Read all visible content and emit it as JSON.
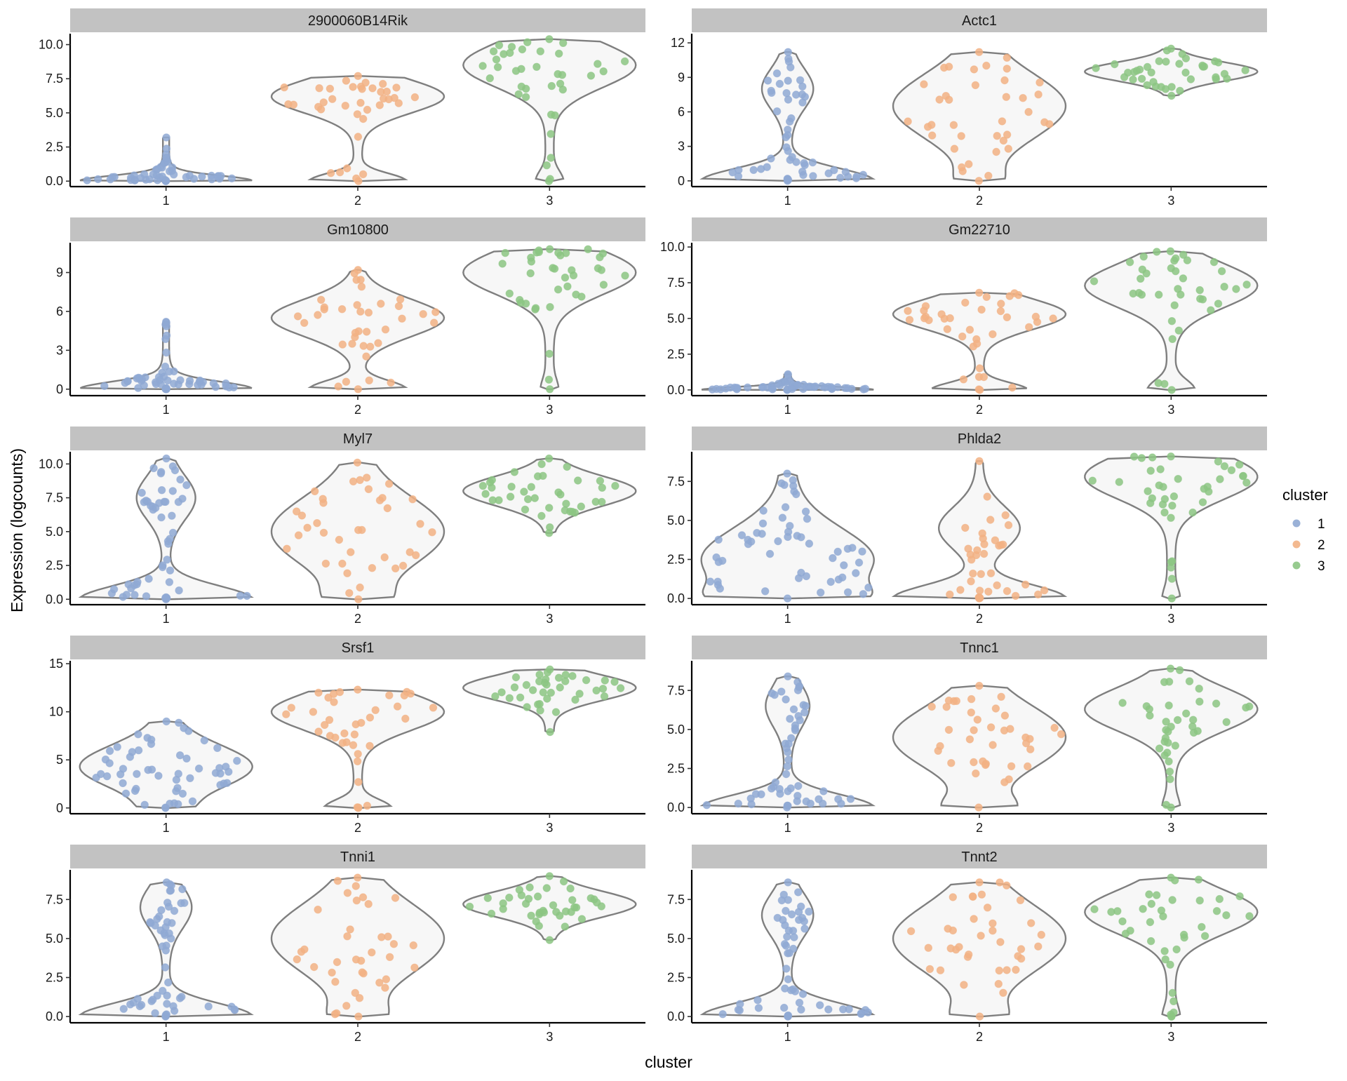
{
  "colors": {
    "1": "#8fa9d3",
    "2": "#f2b184",
    "3": "#8cc583"
  },
  "axis_titles": {
    "x": "cluster",
    "y": "Expression (logcounts)"
  },
  "legend": {
    "title": "cluster",
    "items": [
      "1",
      "2",
      "3"
    ]
  },
  "chart_data": [
    {
      "type": "violin",
      "title": "2900060B14Rik",
      "categories": [
        "1",
        "2",
        "3"
      ],
      "ylim": [
        -0.4,
        10.8
      ],
      "yticks": [
        0,
        2.5,
        5,
        7.5,
        10
      ],
      "ytick_labels": [
        "0.0",
        "2.5",
        "5.0",
        "7.5",
        "10.0"
      ],
      "groups": [
        {
          "name": "1",
          "min": 0,
          "max": 3.2,
          "n_points": 55,
          "distribution": "zero-heavy",
          "upper_mode": 0.5,
          "upper_frac": 0.1
        },
        {
          "name": "2",
          "min": 0,
          "max": 7.7,
          "n_points": 38,
          "distribution": "bimodal",
          "upper_mode": 6.2,
          "upper_frac": 0.55
        },
        {
          "name": "3",
          "min": 0,
          "max": 10.4,
          "n_points": 38,
          "distribution": "bimodal",
          "upper_mode": 8.5,
          "upper_frac": 0.9
        }
      ]
    },
    {
      "type": "violin",
      "title": "Actc1",
      "categories": [
        "1",
        "2",
        "3"
      ],
      "ylim": [
        -0.5,
        12.8
      ],
      "yticks": [
        0,
        3,
        6,
        9,
        12
      ],
      "ytick_labels": [
        "0",
        "3",
        "6",
        "9",
        "12"
      ],
      "groups": [
        {
          "name": "1",
          "min": 0,
          "max": 11.2,
          "n_points": 55,
          "distribution": "zero-heavy",
          "upper_mode": 8,
          "upper_frac": 0.3
        },
        {
          "name": "2",
          "min": 0,
          "max": 11.2,
          "n_points": 38,
          "distribution": "broad",
          "upper_mode": 6.5,
          "upper_frac": 0.85
        },
        {
          "name": "3",
          "min": 7.4,
          "max": 11.5,
          "n_points": 38,
          "distribution": "tight",
          "upper_mode": 9.5,
          "upper_frac": 1
        }
      ]
    },
    {
      "type": "violin",
      "title": "Gm10800",
      "categories": [
        "1",
        "2",
        "3"
      ],
      "ylim": [
        -0.5,
        11.3
      ],
      "yticks": [
        0,
        3,
        6,
        9
      ],
      "ytick_labels": [
        "0",
        "3",
        "6",
        "9"
      ],
      "groups": [
        {
          "name": "1",
          "min": 0,
          "max": 5.2,
          "n_points": 55,
          "distribution": "zero-heavy",
          "upper_mode": 0.6,
          "upper_frac": 0.1
        },
        {
          "name": "2",
          "min": 0,
          "max": 9.2,
          "n_points": 38,
          "distribution": "bimodal",
          "upper_mode": 5.5,
          "upper_frac": 0.55
        },
        {
          "name": "3",
          "min": 0,
          "max": 10.8,
          "n_points": 38,
          "distribution": "bimodal",
          "upper_mode": 9,
          "upper_frac": 0.95
        }
      ]
    },
    {
      "type": "violin",
      "title": "Gm22710",
      "categories": [
        "1",
        "2",
        "3"
      ],
      "ylim": [
        -0.4,
        10.3
      ],
      "yticks": [
        0,
        2.5,
        5,
        7.5,
        10
      ],
      "ytick_labels": [
        "0.0",
        "2.5",
        "5.0",
        "7.5",
        "10.0"
      ],
      "groups": [
        {
          "name": "1",
          "min": 0,
          "max": 1.1,
          "n_points": 55,
          "distribution": "zero-heavy",
          "upper_mode": 0.5,
          "upper_frac": 0.05
        },
        {
          "name": "2",
          "min": 0,
          "max": 6.8,
          "n_points": 38,
          "distribution": "bimodal",
          "upper_mode": 5.3,
          "upper_frac": 0.55
        },
        {
          "name": "3",
          "min": 0,
          "max": 9.7,
          "n_points": 38,
          "distribution": "bimodal",
          "upper_mode": 7.3,
          "upper_frac": 0.8
        }
      ]
    },
    {
      "type": "violin",
      "title": "Myl7",
      "categories": [
        "1",
        "2",
        "3"
      ],
      "ylim": [
        -0.4,
        10.9
      ],
      "yticks": [
        0,
        2.5,
        5,
        7.5,
        10
      ],
      "ytick_labels": [
        "0.0",
        "2.5",
        "5.0",
        "7.5",
        "10.0"
      ],
      "groups": [
        {
          "name": "1",
          "min": 0,
          "max": 10.4,
          "n_points": 55,
          "distribution": "zero-heavy",
          "upper_mode": 7.5,
          "upper_frac": 0.35
        },
        {
          "name": "2",
          "min": 0,
          "max": 10.1,
          "n_points": 38,
          "distribution": "broad",
          "upper_mode": 5,
          "upper_frac": 0.8
        },
        {
          "name": "3",
          "min": 4.9,
          "max": 10.4,
          "n_points": 38,
          "distribution": "tight",
          "upper_mode": 8,
          "upper_frac": 1
        }
      ]
    },
    {
      "type": "violin",
      "title": "Phlda2",
      "categories": [
        "1",
        "2",
        "3"
      ],
      "ylim": [
        -0.4,
        9.4
      ],
      "yticks": [
        0,
        2.5,
        5,
        7.5
      ],
      "ytick_labels": [
        "0.0",
        "2.5",
        "5.0",
        "7.5"
      ],
      "groups": [
        {
          "name": "1",
          "min": 0,
          "max": 8.0,
          "n_points": 55,
          "distribution": "broad",
          "upper_mode": 2.5,
          "upper_frac": 0.55
        },
        {
          "name": "2",
          "min": 0,
          "max": 8.8,
          "n_points": 38,
          "distribution": "zero-heavy",
          "upper_mode": 4.5,
          "upper_frac": 0.5
        },
        {
          "name": "3",
          "min": 0,
          "max": 9.1,
          "n_points": 38,
          "distribution": "bimodal",
          "upper_mode": 7.8,
          "upper_frac": 0.95
        }
      ]
    },
    {
      "type": "violin",
      "title": "Srsf1",
      "categories": [
        "1",
        "2",
        "3"
      ],
      "ylim": [
        -0.6,
        15.3
      ],
      "yticks": [
        0,
        5,
        10,
        15
      ],
      "ytick_labels": [
        "0",
        "5",
        "10",
        "15"
      ],
      "groups": [
        {
          "name": "1",
          "min": 0,
          "max": 9.0,
          "n_points": 55,
          "distribution": "broad",
          "upper_mode": 4.3,
          "upper_frac": 0.9
        },
        {
          "name": "2",
          "min": 0,
          "max": 12.3,
          "n_points": 38,
          "distribution": "bimodal",
          "upper_mode": 10,
          "upper_frac": 0.7
        },
        {
          "name": "3",
          "min": 7.9,
          "max": 14.4,
          "n_points": 38,
          "distribution": "tight",
          "upper_mode": 12.5,
          "upper_frac": 1
        }
      ]
    },
    {
      "type": "violin",
      "title": "Tnnc1",
      "categories": [
        "1",
        "2",
        "3"
      ],
      "ylim": [
        -0.4,
        9.4
      ],
      "yticks": [
        0,
        2.5,
        5,
        7.5
      ],
      "ytick_labels": [
        "0.0",
        "2.5",
        "5.0",
        "7.5"
      ],
      "groups": [
        {
          "name": "1",
          "min": 0,
          "max": 8.4,
          "n_points": 55,
          "distribution": "zero-heavy",
          "upper_mode": 6.5,
          "upper_frac": 0.25
        },
        {
          "name": "2",
          "min": 0,
          "max": 7.8,
          "n_points": 38,
          "distribution": "broad",
          "upper_mode": 4.5,
          "upper_frac": 0.7
        },
        {
          "name": "3",
          "min": 0,
          "max": 8.9,
          "n_points": 38,
          "distribution": "bimodal",
          "upper_mode": 6.3,
          "upper_frac": 0.95
        }
      ]
    },
    {
      "type": "violin",
      "title": "Tnni1",
      "categories": [
        "1",
        "2",
        "3"
      ],
      "ylim": [
        -0.4,
        9.4
      ],
      "yticks": [
        0,
        2.5,
        5,
        7.5
      ],
      "ytick_labels": [
        "0.0",
        "2.5",
        "5.0",
        "7.5"
      ],
      "groups": [
        {
          "name": "1",
          "min": 0,
          "max": 8.6,
          "n_points": 55,
          "distribution": "zero-heavy",
          "upper_mode": 7,
          "upper_frac": 0.3
        },
        {
          "name": "2",
          "min": 0,
          "max": 8.9,
          "n_points": 38,
          "distribution": "broad",
          "upper_mode": 5,
          "upper_frac": 0.8
        },
        {
          "name": "3",
          "min": 4.9,
          "max": 9.0,
          "n_points": 38,
          "distribution": "tight",
          "upper_mode": 7.2,
          "upper_frac": 1
        }
      ]
    },
    {
      "type": "violin",
      "title": "Tnnt2",
      "categories": [
        "1",
        "2",
        "3"
      ],
      "ylim": [
        -0.4,
        9.4
      ],
      "yticks": [
        0,
        2.5,
        5,
        7.5
      ],
      "ytick_labels": [
        "0.0",
        "2.5",
        "5.0",
        "7.5"
      ],
      "groups": [
        {
          "name": "1",
          "min": 0,
          "max": 8.6,
          "n_points": 55,
          "distribution": "zero-heavy",
          "upper_mode": 6.5,
          "upper_frac": 0.3
        },
        {
          "name": "2",
          "min": 0,
          "max": 8.6,
          "n_points": 38,
          "distribution": "broad",
          "upper_mode": 5,
          "upper_frac": 0.8
        },
        {
          "name": "3",
          "min": 0,
          "max": 8.9,
          "n_points": 38,
          "distribution": "bimodal",
          "upper_mode": 6.7,
          "upper_frac": 0.95
        }
      ]
    }
  ]
}
